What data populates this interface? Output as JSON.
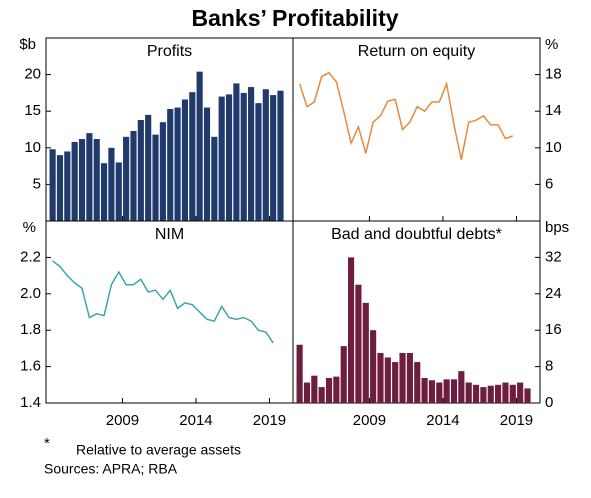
{
  "title": "Banks’ Profitability",
  "chart_data": [
    {
      "type": "bar",
      "title": "Profits",
      "y_label": "$b",
      "y_axis_side": "left",
      "color": "#1f3a6b",
      "x": [
        2004,
        2004.5,
        2005,
        2005.5,
        2006,
        2006.5,
        2007,
        2007.5,
        2008,
        2008.5,
        2009,
        2009.5,
        2010,
        2010.5,
        2011,
        2011.5,
        2012,
        2012.5,
        2013,
        2013.5,
        2014,
        2014.5,
        2015,
        2015.5,
        2016,
        2016.5,
        2017,
        2017.5,
        2018,
        2018.5,
        2019,
        2019.5
      ],
      "values": [
        9.8,
        9,
        9.5,
        10.8,
        11.2,
        12,
        11.2,
        7.9,
        10,
        8,
        11.5,
        12.3,
        13.8,
        14.5,
        11.8,
        13.5,
        15.3,
        15.5,
        16.6,
        17.6,
        20.4,
        15.5,
        11.5,
        17,
        17.3,
        18.8,
        17.5,
        18.3,
        16.1,
        18,
        17.2,
        17.8
      ],
      "xlim": [
        2003.8,
        2020.6
      ],
      "xticks": [
        2009,
        2014,
        2019
      ],
      "ylim": [
        0,
        25
      ],
      "yticks": [
        5,
        10,
        15,
        20
      ]
    },
    {
      "type": "line",
      "title": "Return on equity",
      "y_label": "%",
      "y_axis_side": "right",
      "color": "#e58a3c",
      "x": [
        2004,
        2004.5,
        2005,
        2005.5,
        2006,
        2006.5,
        2007,
        2007.5,
        2008,
        2008.5,
        2009,
        2009.5,
        2010,
        2010.5,
        2011,
        2011.5,
        2012,
        2012.5,
        2013,
        2013.5,
        2014,
        2014.5,
        2015,
        2015.5,
        2016,
        2016.5,
        2017,
        2017.5,
        2018,
        2018.5
      ],
      "values": [
        17,
        14.5,
        15,
        17.8,
        18.2,
        17.2,
        14,
        10.5,
        12.3,
        9.4,
        12.8,
        13.5,
        15.1,
        15.3,
        12,
        12.8,
        14.5,
        14,
        15,
        15,
        17,
        12.5,
        8.7,
        12.8,
        13,
        13.5,
        12.5,
        12.5,
        11,
        11.3
      ],
      "xlim": [
        2003.8,
        2020.6
      ],
      "xticks": [
        2009,
        2014,
        2019
      ],
      "ylim": [
        2,
        22
      ],
      "yticks": [
        6,
        10,
        14,
        18
      ]
    },
    {
      "type": "line",
      "title": "NIM",
      "y_label": "%",
      "y_axis_side": "left",
      "color": "#3ba7a9",
      "x": [
        2004,
        2004.5,
        2005,
        2005.5,
        2006,
        2006.5,
        2007,
        2007.5,
        2008,
        2008.5,
        2009,
        2009.5,
        2010,
        2010.5,
        2011,
        2011.5,
        2012,
        2012.5,
        2013,
        2013.5,
        2014,
        2014.5,
        2015,
        2015.5,
        2016,
        2016.5,
        2017,
        2017.5,
        2018,
        2018.5,
        2019
      ],
      "values": [
        2.18,
        2.15,
        2.1,
        2.06,
        2.03,
        1.87,
        1.89,
        1.88,
        2.05,
        2.12,
        2.05,
        2.05,
        2.08,
        2.01,
        2.02,
        1.97,
        2.02,
        1.92,
        1.95,
        1.94,
        1.9,
        1.86,
        1.85,
        1.93,
        1.87,
        1.86,
        1.87,
        1.85,
        1.8,
        1.79,
        1.73
      ],
      "xlim": [
        2003.8,
        2020.6
      ],
      "xticks": [
        2009,
        2014,
        2019
      ],
      "ylim": [
        1.4,
        2.4
      ],
      "yticks": [
        1.4,
        1.6,
        1.8,
        {
          "value": 2,
          "label": "2.0"
        },
        2.2
      ]
    },
    {
      "type": "bar",
      "title": "Bad and doubtful debts*",
      "y_label": "bps",
      "y_axis_side": "right",
      "color": "#6d1d3e",
      "x": [
        2004,
        2004.5,
        2005,
        2005.5,
        2006,
        2006.5,
        2007,
        2007.5,
        2008,
        2008.5,
        2009,
        2009.5,
        2010,
        2010.5,
        2011,
        2011.5,
        2012,
        2012.5,
        2013,
        2013.5,
        2014,
        2014.5,
        2015,
        2015.5,
        2016,
        2016.5,
        2017,
        2017.5,
        2018,
        2018.5,
        2019,
        2019.5
      ],
      "values": [
        12.8,
        4.5,
        6,
        3.5,
        5.5,
        5.8,
        12.5,
        32,
        26,
        22,
        16,
        11,
        10,
        9,
        11,
        11,
        9,
        5.5,
        5,
        4.5,
        5.2,
        5.2,
        7,
        4.5,
        4,
        3.5,
        3.8,
        4,
        4.5,
        4,
        4.5,
        3.2
      ],
      "xlim": [
        2003.8,
        2020.6
      ],
      "xticks": [
        2009,
        2014,
        2019
      ],
      "ylim": [
        0,
        40
      ],
      "yticks": [
        0,
        8,
        16,
        24,
        32
      ]
    }
  ],
  "notes": {
    "marker": "*",
    "footnote": "Relative to average assets",
    "sources": "Sources: APRA; RBA"
  }
}
